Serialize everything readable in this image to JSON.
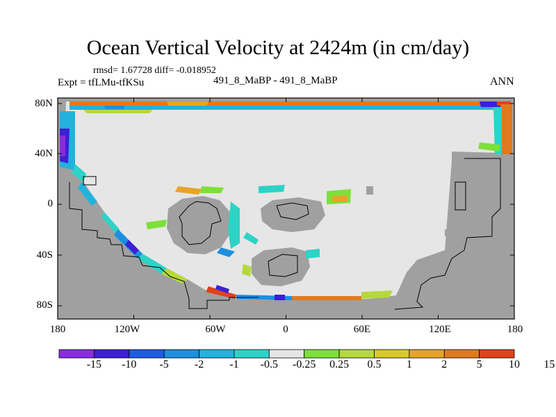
{
  "title": "Ocean Vertical Velocity at 2424m (in cm/day)",
  "stats": "rmsd= 1.67728  diff= -0.018952",
  "experiment": "Expt = tfLMu-tfKSu",
  "cases": "491_8_MaBP - 491_8_MaBP",
  "season": "ANN",
  "lat_ticks": [
    "80N",
    "40N",
    "0",
    "40S",
    "80S"
  ],
  "lon_ticks": [
    "180",
    "120W",
    "60W",
    "0",
    "60E",
    "120E",
    "180"
  ],
  "colorbar": {
    "labels": [
      "-15",
      "-10",
      "-5",
      "-2",
      "-1",
      "-0.5",
      "-0.25",
      "0.25",
      "0.5",
      "1",
      "2",
      "5",
      "10",
      "15"
    ],
    "colors": [
      "#8a2be2",
      "#3d1fd6",
      "#1e5ce6",
      "#1c8fe0",
      "#22b2dd",
      "#2dd3c7",
      "#e6e6e6",
      "#7de03a",
      "#b5d93c",
      "#d8c92a",
      "#e6a526",
      "#e07a1e",
      "#e0421a"
    ]
  },
  "map_colors": {
    "land": "#a0a0a0",
    "ocean_neutral": "#e6e6e6",
    "coast": "#000000"
  }
}
